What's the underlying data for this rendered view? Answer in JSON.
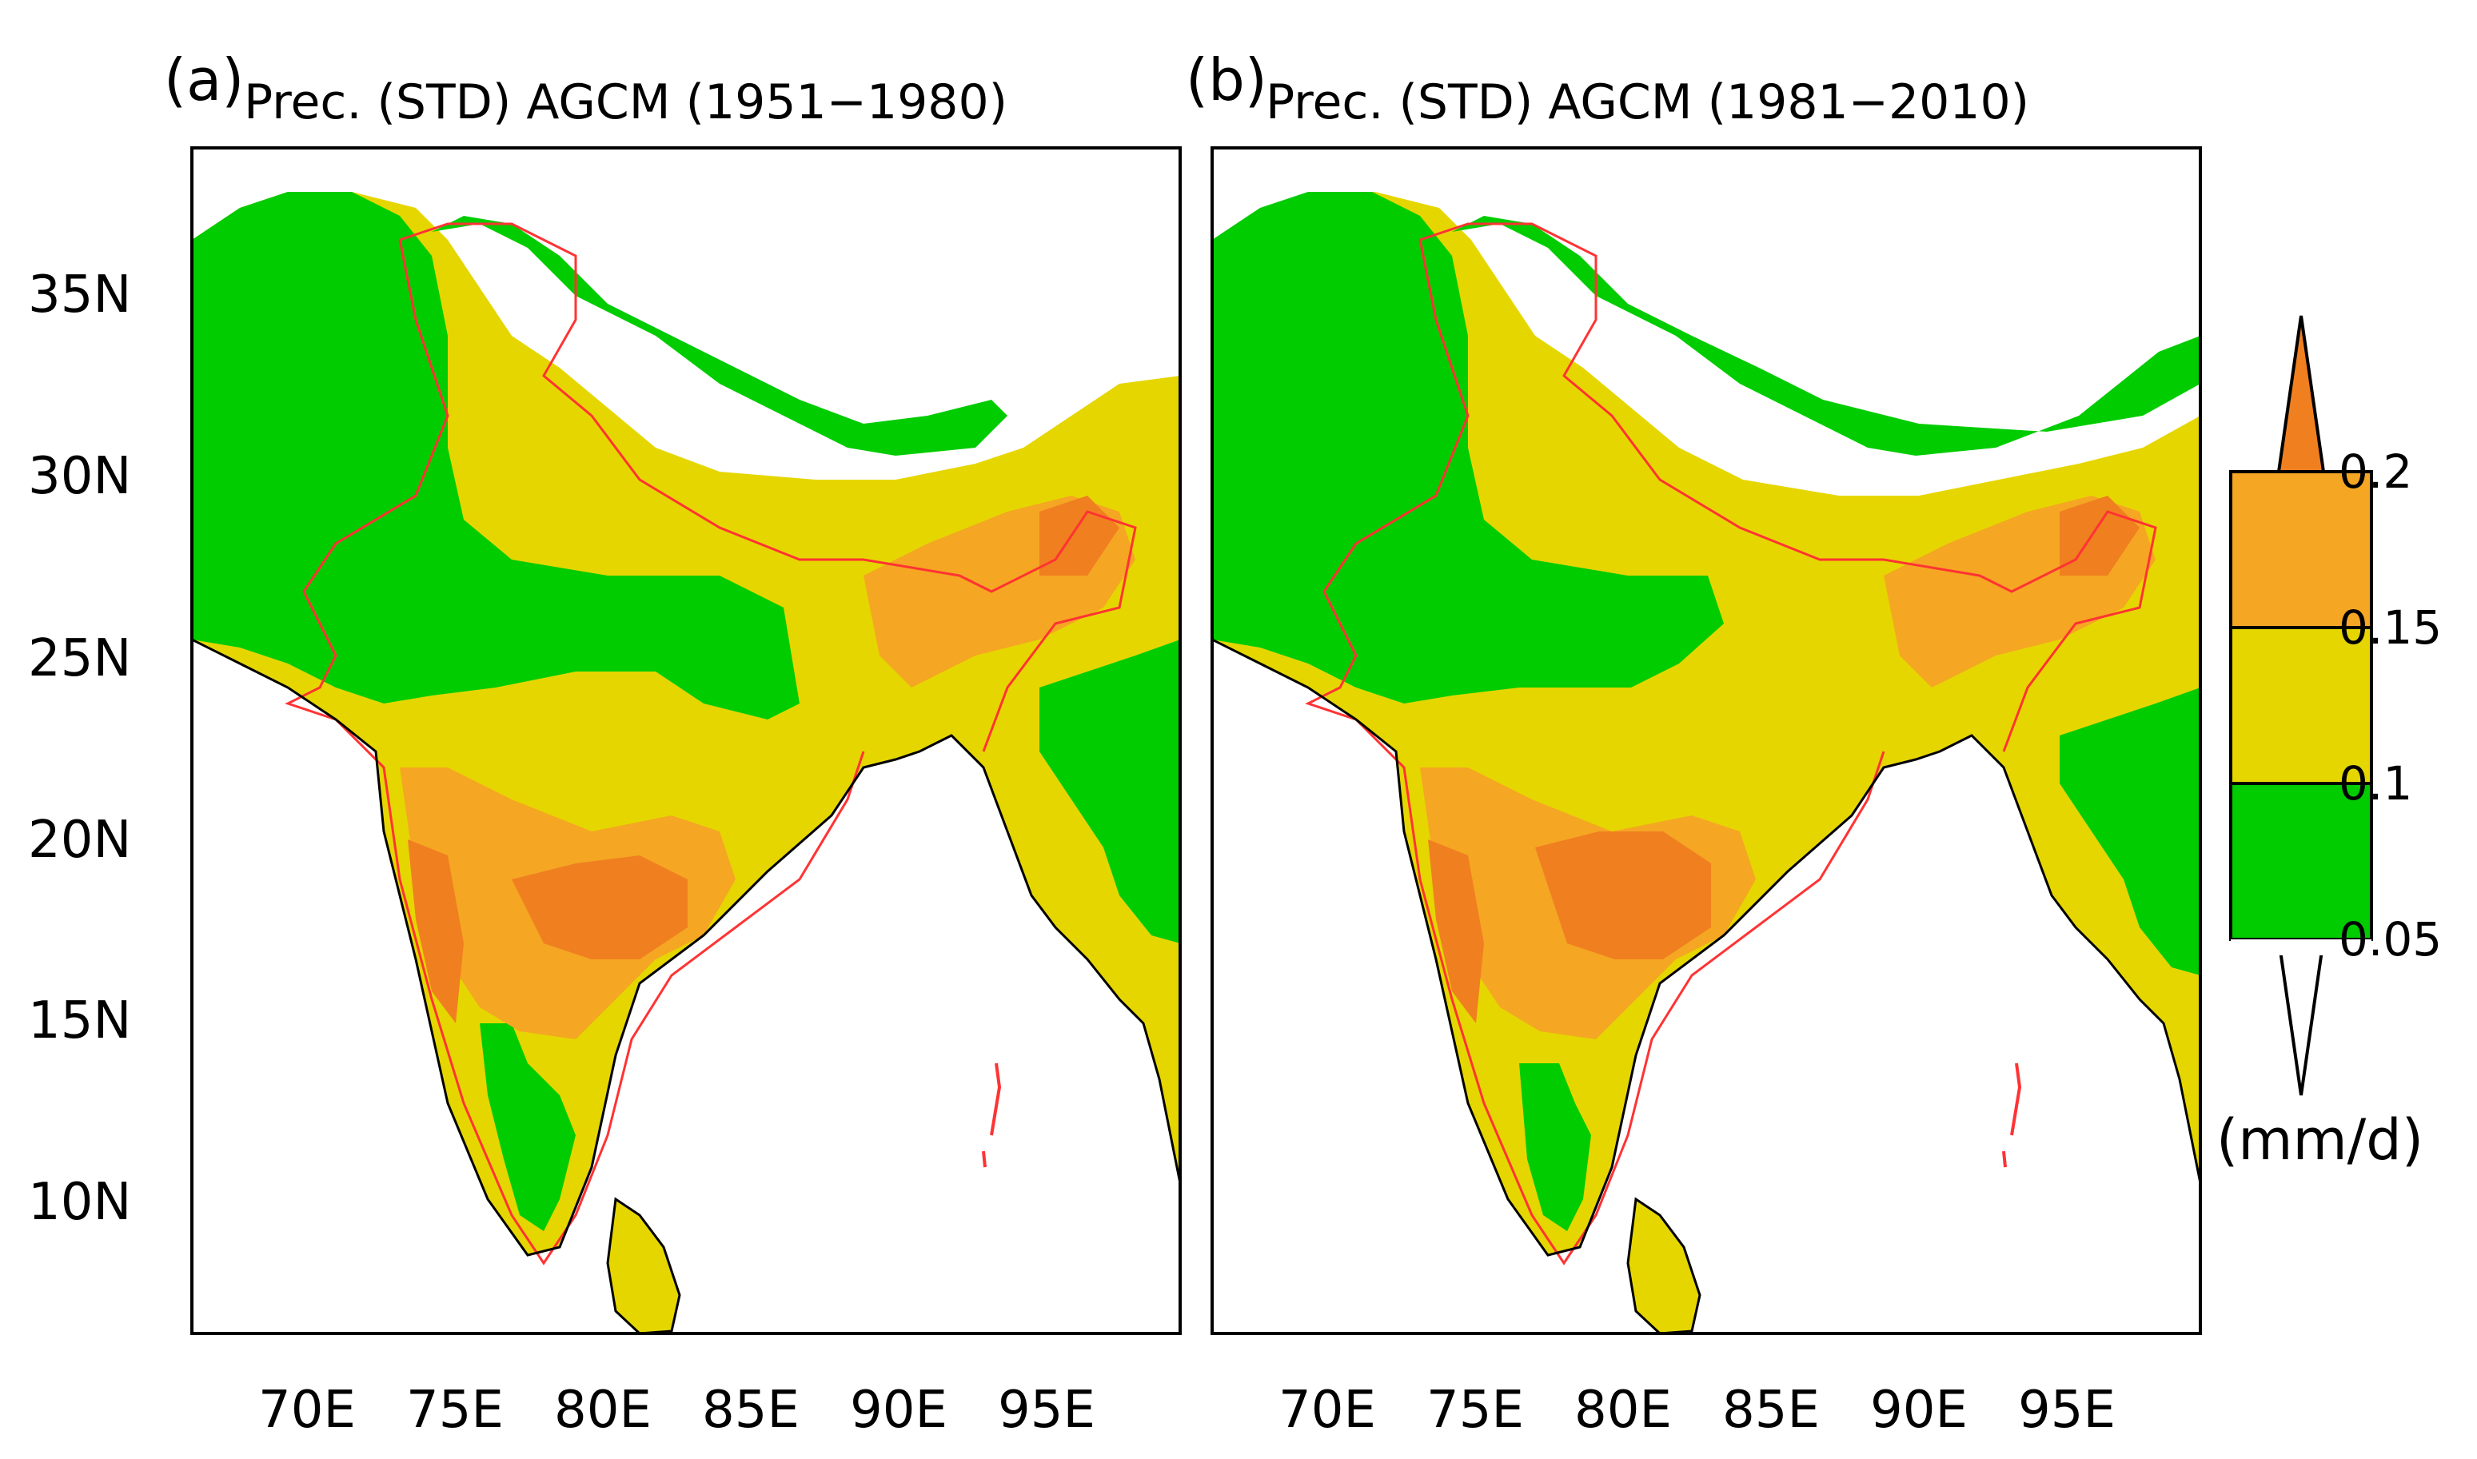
{
  "figure": {
    "panels": [
      {
        "letter": "(a)",
        "title": "Prec. (STD) AGCM (1951−1980)"
      },
      {
        "letter": "(b)",
        "title": "Prec. (STD) AGCM (1981−2010)"
      }
    ],
    "lat_ticks": [
      "35N",
      "30N",
      "25N",
      "20N",
      "15N",
      "10N"
    ],
    "lon_ticks": [
      "70E",
      "75E",
      "80E",
      "85E",
      "90E",
      "95E"
    ],
    "colorbar": {
      "levels": [
        "0.2",
        "0.15",
        "0.1",
        "0.05"
      ],
      "unit": "(mm/d)",
      "colors": {
        "below_0_05": "#ffffff",
        "0_05_to_0_1": "#00cc00",
        "0_1_to_0_15": "#e6d600",
        "0_15_to_0_2": "#f5a623",
        "above_0_2": "#f07f20"
      }
    }
  },
  "map_data": {
    "type": "heatmap",
    "variable": "Precipitation standard deviation",
    "units": "mm/d",
    "region": {
      "lon_range": [
        66,
        99
      ],
      "lat_range": [
        6,
        39
      ]
    },
    "panel_a_summary": "Green (0.05-0.1) over NW India, Pakistan and parts of east/NE; yellow (0.1-0.15) along Himalayan foothills and northern plains; orange (>0.15) over central peninsula and Western Ghats; white (<0.05) over Tibetan plateau and ocean.",
    "panel_b_summary": "Similar pattern with reduced green area over central India (more yellow), orange over central peninsula and NE India."
  }
}
